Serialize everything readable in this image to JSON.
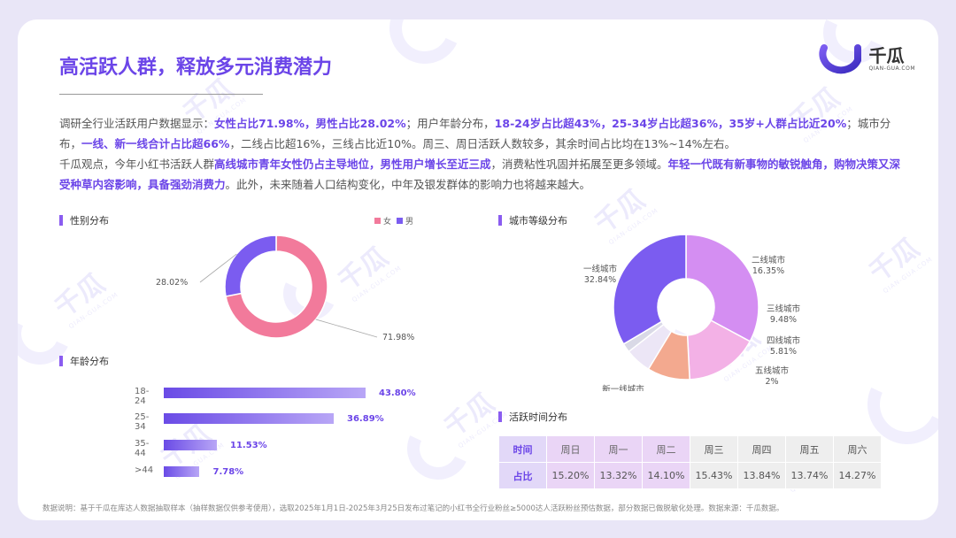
{
  "title": "高活跃人群，释放多元消费潜力",
  "logo": {
    "cn": "千瓜",
    "en": "QIAN-GUA.COM"
  },
  "watermark": {
    "cn": "千瓜",
    "en": "QIAN-GUA.COM"
  },
  "paragraph1": [
    {
      "t": "调研全行业活跃用户数据显示：",
      "h": false
    },
    {
      "t": "女性占比71.98%，男性占比28.02%",
      "h": true
    },
    {
      "t": "；用户年龄分布，",
      "h": false
    },
    {
      "t": "18-24岁占比超43%，25-34岁占比超36%，35岁+人群占比近20%",
      "h": true
    },
    {
      "t": "；城市分布，",
      "h": false
    },
    {
      "t": "一线、新一线合计占比超66%",
      "h": true
    },
    {
      "t": "，二线占比超16%，三线占比近10%。周三、周日活跃人数较多，其余时间占比均在13%~14%左右。",
      "h": false
    }
  ],
  "paragraph2": [
    {
      "t": "千瓜观点，今年小红书活跃人群",
      "h": false
    },
    {
      "t": "高线城市青年女性仍占主导地位，男性用户增长至近三成",
      "h": true
    },
    {
      "t": "，消费粘性巩固并拓展至更多领域。",
      "h": false
    },
    {
      "t": "年轻一代既有新事物的敏锐触角，购物决策又深受种草内容影响，具备强劲消费力",
      "h": true
    },
    {
      "t": "。此外，未来随着人口结构变化，中年及银发群体的影响力也将越来越大。",
      "h": false
    }
  ],
  "sections": {
    "gender": "性别分布",
    "age": "年龄分布",
    "city": "城市等级分布",
    "time": "活跃时间分布"
  },
  "colors": {
    "female": "#f27a9b",
    "male": "#7b5cf0",
    "accent": "#6b45e8"
  },
  "chart_data": [
    {
      "type": "pie",
      "name": "gender",
      "categories": [
        "女",
        "男"
      ],
      "values": [
        71.98,
        28.02
      ],
      "labels": [
        "71.98%",
        "28.02%"
      ],
      "colors": [
        "#f27a9b",
        "#7b5cf0"
      ],
      "legend": "top-right"
    },
    {
      "type": "bar",
      "orientation": "horizontal",
      "name": "age",
      "categories": [
        "18-24",
        "25-34",
        "35-44",
        ">44"
      ],
      "values": [
        43.8,
        36.89,
        11.53,
        7.78
      ],
      "labels": [
        "43.80%",
        "36.89%",
        "11.53%",
        "7.78%"
      ]
    },
    {
      "type": "pie",
      "name": "city",
      "categories": [
        "一线城市",
        "二线城市",
        "三线城市",
        "四线城市",
        "五线城市",
        "新一线城市"
      ],
      "values": [
        32.84,
        16.35,
        9.48,
        5.81,
        2,
        33.52
      ],
      "labels": [
        "32.84%",
        "16.35%",
        "9.48%",
        "5.81%",
        "2%",
        "33.52%"
      ],
      "colors": [
        "#d48ef2",
        "#f3b1e6",
        "#f3a98f",
        "#ece6f6",
        "#d9d9e6",
        "#7b5cf0"
      ]
    },
    {
      "type": "table",
      "name": "time",
      "row_headers": [
        "时间",
        "占比"
      ],
      "columns": [
        "周日",
        "周一",
        "周二",
        "周三",
        "周四",
        "周五",
        "周六"
      ],
      "values": [
        "15.20%",
        "13.32%",
        "14.10%",
        "15.43%",
        "13.84%",
        "13.74%",
        "14.27%"
      ]
    }
  ],
  "note": "数据说明：基于千瓜在库达人数据抽取样本（抽样数据仅供参考使用），选取2025年1月1日-2025年3月25日发布过笔记的小红书全行业粉丝≥5000达人活跃粉丝预估数据，部分数据已做脱敏化处理。数据来源：千瓜数据。"
}
